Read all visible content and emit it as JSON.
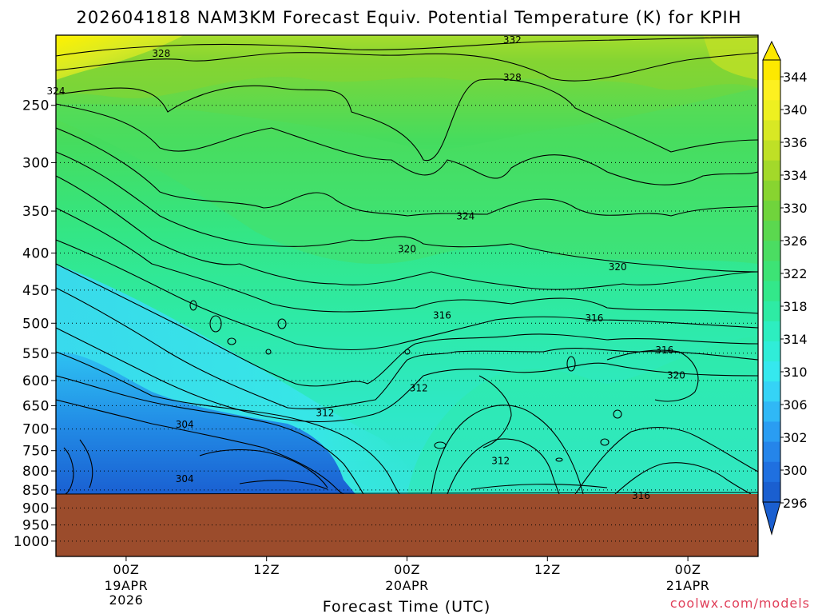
{
  "chart_data": {
    "type": "heatmap",
    "title": "2026041818 NAM3KM Forecast Equiv. Potential Temperature (K) for KPIH",
    "xlabel": "Forecast Time (UTC)",
    "ylabel": "",
    "watermark": "coolwx.com/models",
    "y_axis": {
      "scale": "log-pressure",
      "ticks": [
        250,
        300,
        350,
        400,
        450,
        500,
        550,
        600,
        650,
        700,
        750,
        800,
        850,
        900,
        950,
        1000
      ],
      "range": [
        200,
        1050
      ],
      "grid": "dotted"
    },
    "x_axis": {
      "range": [
        "2026-04-18 18Z",
        "2026-04-21 06Z"
      ],
      "ticks": [
        {
          "time": "2026-04-19 00Z",
          "hour": "00Z",
          "day": "19APR",
          "year": "2026"
        },
        {
          "time": "2026-04-19 12Z",
          "hour": "12Z",
          "day": "",
          "year": ""
        },
        {
          "time": "2026-04-20 00Z",
          "hour": "00Z",
          "day": "20APR",
          "year": ""
        },
        {
          "time": "2026-04-20 12Z",
          "hour": "12Z",
          "day": "",
          "year": ""
        },
        {
          "time": "2026-04-21 00Z",
          "hour": "00Z",
          "day": "21APR",
          "year": ""
        }
      ]
    },
    "colorbar": {
      "levels": [
        296,
        300,
        302,
        304,
        306,
        308,
        310,
        312,
        314,
        316,
        318,
        320,
        322,
        324,
        326,
        328,
        330,
        332,
        334,
        336,
        338,
        340,
        344
      ],
      "labels": [
        344,
        340,
        336,
        334,
        330,
        326,
        322,
        318,
        314,
        310,
        306,
        302,
        300,
        296
      ],
      "colors": [
        "#1a5fd0",
        "#1f70e0",
        "#2585ea",
        "#2a9df2",
        "#30b8f6",
        "#35d3f6",
        "#35e8ee",
        "#30edd8",
        "#2deec0",
        "#2eeba4",
        "#33e88a",
        "#3de375",
        "#4bdd62",
        "#5bd84f",
        "#70d43c",
        "#88d430",
        "#a3d92a",
        "#bfe026",
        "#d8e824",
        "#eef020",
        "#fdf020",
        "#fde800"
      ]
    },
    "ground": {
      "pressure_top": 865,
      "color": "#9b4c2c"
    },
    "contour_labels": [
      {
        "value": "332",
        "time": "2026-04-20 09Z",
        "pressure": 203
      },
      {
        "value": "328",
        "time": "2026-04-19 03Z",
        "pressure": 212
      },
      {
        "value": "328",
        "time": "2026-04-20 09Z",
        "pressure": 229
      },
      {
        "value": "324",
        "time": "2026-04-18 18Z",
        "pressure": 239
      },
      {
        "value": "324",
        "time": "2026-04-20 05Z",
        "pressure": 356
      },
      {
        "value": "320",
        "time": "2026-04-20 00Z",
        "pressure": 395
      },
      {
        "value": "320",
        "time": "2026-04-20 18Z",
        "pressure": 418
      },
      {
        "value": "316",
        "time": "2026-04-20 03Z",
        "pressure": 488
      },
      {
        "value": "316",
        "time": "2026-04-20 16Z",
        "pressure": 492
      },
      {
        "value": "316",
        "time": "2026-04-20 22Z",
        "pressure": 545
      },
      {
        "value": "320",
        "time": "2026-04-20 23Z",
        "pressure": 590
      },
      {
        "value": "312",
        "time": "2026-04-20 01Z",
        "pressure": 615
      },
      {
        "value": "312",
        "time": "2026-04-19 17Z",
        "pressure": 665
      },
      {
        "value": "304",
        "time": "2026-04-19 05Z",
        "pressure": 690
      },
      {
        "value": "312",
        "time": "2026-04-20 08Z",
        "pressure": 775
      },
      {
        "value": "304",
        "time": "2026-04-19 05Z",
        "pressure": 820
      },
      {
        "value": "316",
        "time": "2026-04-20 20Z",
        "pressure": 865
      }
    ]
  }
}
